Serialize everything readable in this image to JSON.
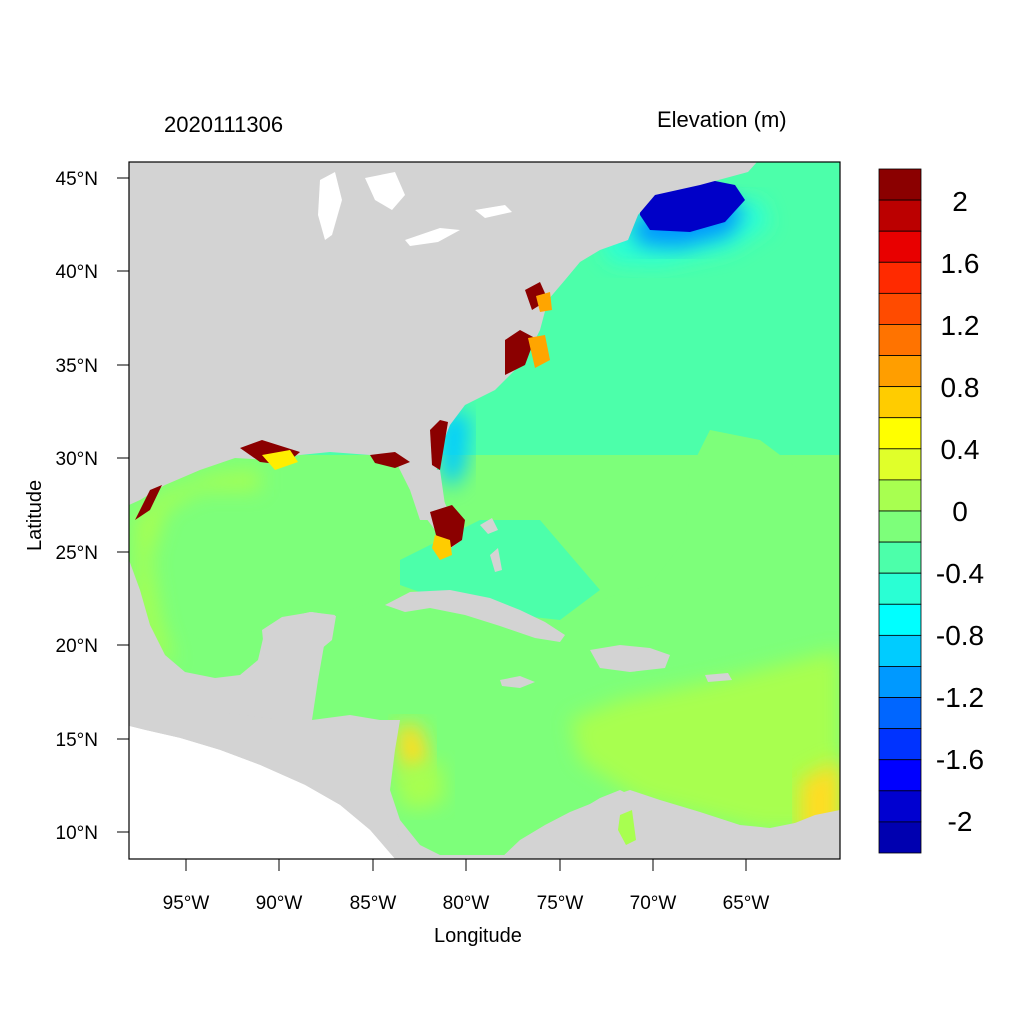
{
  "map": {
    "title_left": "2020111306",
    "title_right": "Elevation (m)",
    "xlabel": "Longitude",
    "ylabel": "Latitude",
    "x_ticks": [
      "95°W",
      "90°W",
      "85°W",
      "80°W",
      "75°W",
      "70°W",
      "65°W"
    ],
    "y_ticks": [
      "45°N",
      "40°N",
      "35°N",
      "30°N",
      "25°N",
      "20°N",
      "15°N",
      "10°N"
    ],
    "colors": {
      "land": "#d3d3d3",
      "ocean_low": "#4cffaa",
      "ocean_mid": "#7dff7a",
      "ocean_high": "#a8ff50",
      "surge_max": "#8b0000",
      "surge_min": "#0000b0"
    }
  },
  "colorbar": {
    "labels": [
      "2",
      "1.6",
      "1.2",
      "0.8",
      "0.4",
      "0",
      "-0.4",
      "-0.8",
      "-1.2",
      "-1.6",
      "-2"
    ],
    "colors": [
      "#8b0000",
      "#bb0000",
      "#e80000",
      "#ff2a00",
      "#ff4b00",
      "#ff7300",
      "#ff9e00",
      "#ffcc00",
      "#ffff00",
      "#e0ff2a",
      "#a8ff50",
      "#7dff7a",
      "#4cffaa",
      "#2affd4",
      "#00ffff",
      "#00ccff",
      "#0099ff",
      "#0066ff",
      "#0033ff",
      "#0000ff",
      "#0000d0",
      "#0000b0"
    ]
  }
}
